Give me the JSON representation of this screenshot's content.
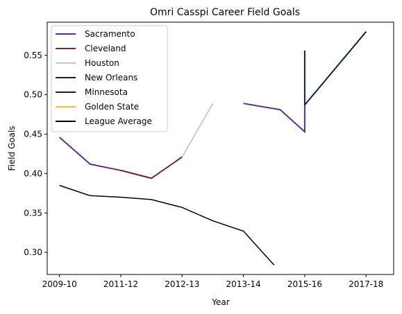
{
  "chart_data": {
    "type": "line",
    "title": "Omri Casspi Career Field Goals",
    "xlabel": "Year",
    "ylabel": "Field Goals",
    "x_ticks": [
      "2009-10",
      "2011-12",
      "2012-13",
      "2013-14",
      "2015-16",
      "2017-18"
    ],
    "x_tick_positions": [
      0,
      1,
      2,
      3,
      4,
      5
    ],
    "xlim": [
      -0.2,
      5.45
    ],
    "y_ticks": [
      "0.30",
      "0.35",
      "0.40",
      "0.45",
      "0.50",
      "0.55"
    ],
    "y_tick_values": [
      0.3,
      0.35,
      0.4,
      0.45,
      0.5,
      0.55
    ],
    "ylim": [
      0.272,
      0.592
    ],
    "grid": false,
    "legend_position": "top-left",
    "series": [
      {
        "name": "Sacramento",
        "color": "#5b2d87",
        "points": [
          [
            0,
            0.446
          ],
          [
            0.5,
            0.412
          ],
          [
            1.0,
            0.404
          ],
          [
            1.5,
            0.394
          ]
        ]
      },
      {
        "name": "Sacramento",
        "color": "#5b2d87",
        "points": [
          [
            3.0,
            0.489
          ],
          [
            3.6,
            0.481
          ],
          [
            4.0,
            0.453
          ],
          [
            4.0,
            0.489
          ]
        ],
        "legend": false
      },
      {
        "name": "Cleveland",
        "color": "#6f263d",
        "points": [
          [
            1.0,
            0.404
          ],
          [
            1.5,
            0.394
          ],
          [
            2.0,
            0.421
          ]
        ]
      },
      {
        "name": "Houston",
        "color": "#c4ced4",
        "points": [
          [
            2.0,
            0.421
          ],
          [
            2.5,
            0.489
          ]
        ]
      },
      {
        "name": "New Orleans",
        "color": "#0c2340",
        "points": [
          [
            4.0,
            0.556
          ],
          [
            4.0,
            0.487
          ]
        ]
      },
      {
        "name": "Minnesota",
        "color": "#0c2340",
        "points": [
          [
            4.0,
            0.487
          ],
          [
            5.0,
            0.58
          ]
        ]
      },
      {
        "name": "Golden State",
        "color": "#fdb927",
        "points": []
      },
      {
        "name": "League Average",
        "color": "#000000",
        "points": [
          [
            0,
            0.385
          ],
          [
            0.5,
            0.372
          ],
          [
            1.0,
            0.37
          ],
          [
            1.5,
            0.367
          ],
          [
            2.0,
            0.357
          ],
          [
            2.5,
            0.34
          ],
          [
            3.0,
            0.327
          ],
          [
            3.5,
            0.284
          ]
        ]
      }
    ],
    "legend": [
      {
        "name": "Sacramento",
        "color": "#5b2d87"
      },
      {
        "name": "Cleveland",
        "color": "#6f263d"
      },
      {
        "name": "Houston",
        "color": "#c4c4c4"
      },
      {
        "name": "New Orleans",
        "color": "#0c2340"
      },
      {
        "name": "Minnesota",
        "color": "#0c2340"
      },
      {
        "name": "Golden State",
        "color": "#fdb927"
      },
      {
        "name": "League Average",
        "color": "#000000"
      }
    ]
  }
}
